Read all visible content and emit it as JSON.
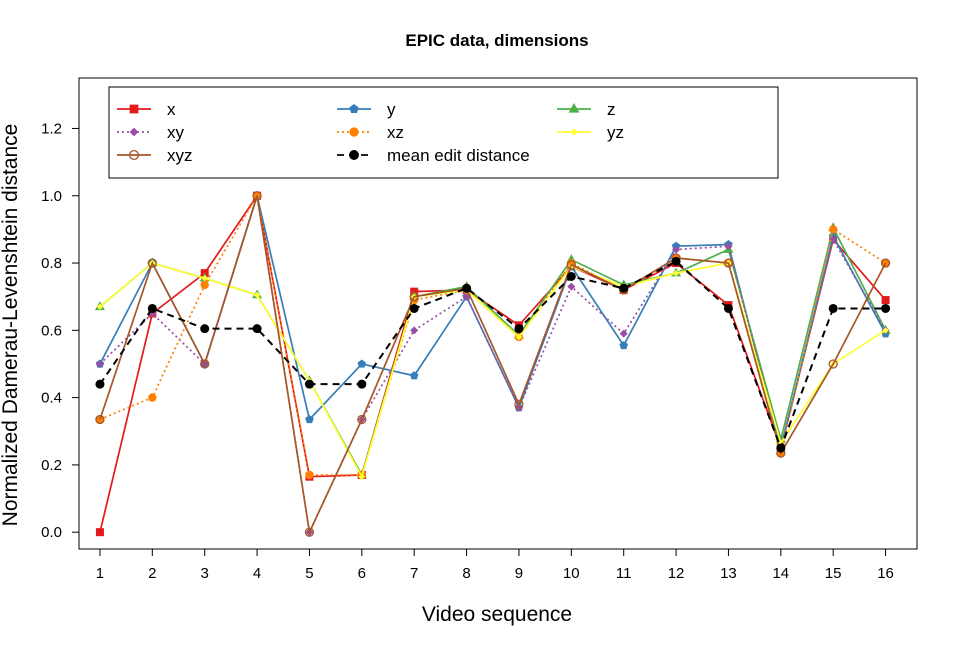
{
  "chart_data": {
    "type": "line",
    "title": "EPIC data, dimensions",
    "xlabel": "Video sequence",
    "ylabel": "Normalized Damerau-Levenshtein distance",
    "x": [
      1,
      2,
      3,
      4,
      5,
      6,
      7,
      8,
      9,
      10,
      11,
      12,
      13,
      14,
      15,
      16
    ],
    "xlim": [
      0.6,
      16.6
    ],
    "ylim": [
      -0.05,
      1.35
    ],
    "x_ticks": [
      "1",
      "2",
      "3",
      "4",
      "5",
      "6",
      "7",
      "8",
      "9",
      "10",
      "11",
      "12",
      "13",
      "14",
      "15",
      "16"
    ],
    "y_ticks": [
      "0.0",
      "0.2",
      "0.4",
      "0.6",
      "0.8",
      "1.0",
      "1.2"
    ],
    "grid": false,
    "legend_position": "top-left",
    "series": [
      {
        "name": "x",
        "color": "#e41a1c",
        "marker": "square",
        "line": "solid",
        "values": [
          0.0,
          0.65,
          0.77,
          1.0,
          0.165,
          0.17,
          0.715,
          0.72,
          0.615,
          0.79,
          0.72,
          0.8,
          0.675,
          0.25,
          0.87,
          0.69
        ]
      },
      {
        "name": "y",
        "color": "#377eb8",
        "marker": "pentagon",
        "line": "solid",
        "values": [
          0.5,
          0.8,
          0.5,
          1.0,
          0.335,
          0.5,
          0.465,
          0.7,
          0.37,
          0.79,
          0.555,
          0.85,
          0.855,
          0.25,
          0.88,
          0.59
        ]
      },
      {
        "name": "z",
        "color": "#4daf4a",
        "marker": "triangle",
        "line": "solid",
        "values": [
          0.67,
          0.8,
          0.755,
          0.705,
          0.45,
          0.17,
          0.7,
          0.73,
          0.585,
          0.81,
          0.735,
          0.77,
          0.84,
          0.275,
          0.905,
          0.6
        ]
      },
      {
        "name": "xy",
        "color": "#984ea3",
        "marker": "diamond",
        "line": "dotted",
        "values": [
          0.5,
          0.65,
          0.5,
          1.0,
          0.0,
          0.335,
          0.6,
          0.7,
          0.37,
          0.73,
          0.59,
          0.84,
          0.85,
          0.25,
          0.87,
          0.6
        ]
      },
      {
        "name": "xz",
        "color": "#ff7f00",
        "marker": "circle",
        "line": "dotted",
        "values": [
          0.335,
          0.4,
          0.735,
          1.0,
          0.17,
          0.17,
          0.69,
          0.72,
          0.58,
          0.8,
          0.72,
          0.815,
          0.8,
          0.235,
          0.9,
          0.8
        ]
      },
      {
        "name": "yz",
        "color": "#ffff33",
        "marker": "small-diamond",
        "line": "solid",
        "values": [
          0.67,
          0.8,
          0.755,
          0.705,
          0.45,
          0.165,
          0.7,
          0.72,
          0.58,
          0.79,
          0.73,
          0.77,
          0.8,
          0.265,
          0.5,
          0.6
        ]
      },
      {
        "name": "xyz",
        "color": "#a65628",
        "marker": "open-circle",
        "line": "solid",
        "values": [
          0.335,
          0.8,
          0.5,
          1.0,
          0.0,
          0.335,
          0.7,
          0.725,
          0.38,
          0.795,
          0.72,
          0.815,
          0.8,
          0.235,
          0.5,
          0.8
        ]
      },
      {
        "name": "mean edit distance",
        "color": "#000000",
        "marker": "filled-circle",
        "line": "dashed",
        "values": [
          0.44,
          0.665,
          0.605,
          0.605,
          0.44,
          0.44,
          0.665,
          0.725,
          0.605,
          0.76,
          0.725,
          0.805,
          0.665,
          0.25,
          0.665,
          0.665
        ]
      }
    ],
    "legend_layout": [
      [
        "x",
        "y",
        "z"
      ],
      [
        "xy",
        "xz",
        "yz"
      ],
      [
        "xyz",
        "mean edit distance"
      ]
    ]
  }
}
